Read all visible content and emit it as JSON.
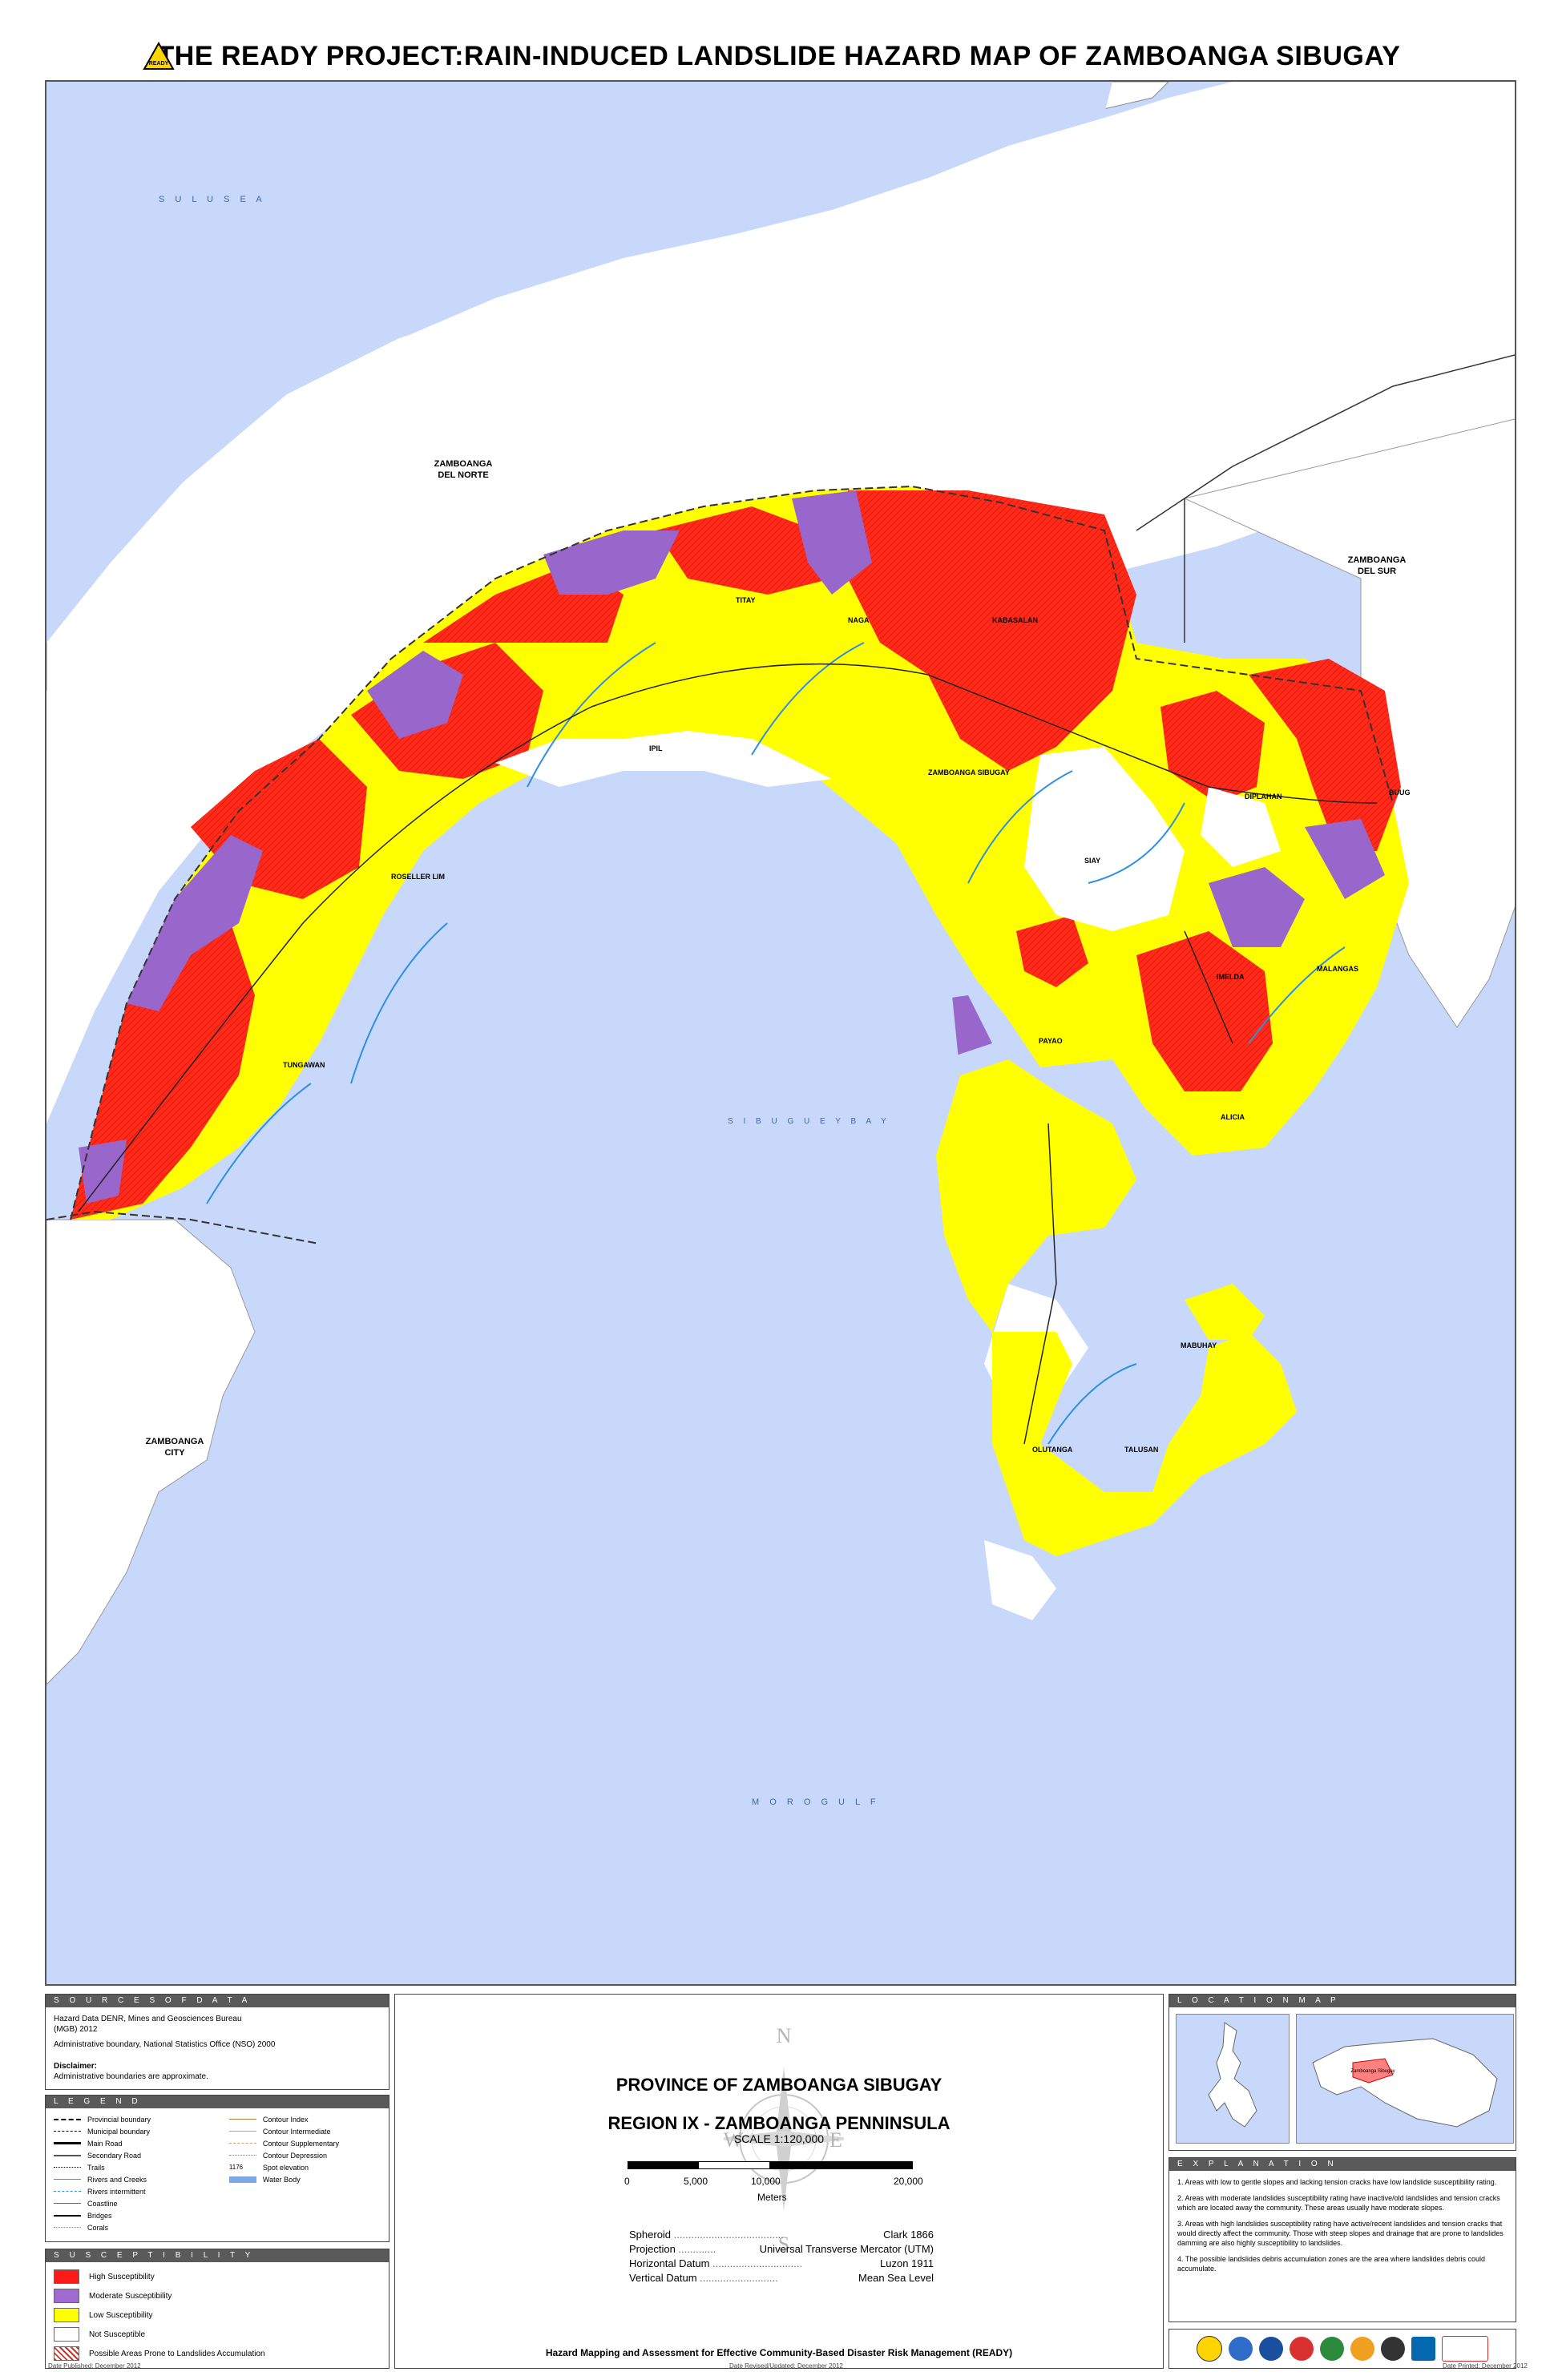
{
  "title": "THE READY PROJECT:RAIN-INDUCED LANDSLIDE HAZARD MAP OF ZAMBOANGA SIBUGAY",
  "map": {
    "water_labels": [
      "S U L U   S E A",
      "S I B U G U E Y   B A Y",
      "M O R O   G U L F"
    ],
    "region_labels": [
      {
        "line1": "ZAMBOANGA",
        "line2": "DEL NORTE"
      },
      {
        "line1": "ZAMBOANGA",
        "line2": "DEL SUR"
      },
      {
        "line1": "ZAMBOANGA",
        "line2": "CITY"
      }
    ],
    "towns": [
      "TITAY",
      "NAGA",
      "KABASALAN",
      "IPIL",
      "ZAMBOANGA SIBUGAY",
      "ROSELLER LIM",
      "SIAY",
      "DIPLAHAN",
      "BUUG",
      "MALANGAS",
      "IMELDA",
      "PAYAO",
      "TUNGAWAN",
      "ALICIA",
      "MABUHAY",
      "OLUTANGA",
      "TALUSAN"
    ],
    "colors": {
      "water": "#c7d8fb",
      "high": "#ff2a1a",
      "moderate": "#9966cc",
      "low": "#ffff00",
      "not": "#ffffff",
      "river": "#2f8fe0"
    }
  },
  "sources": {
    "header": "S O U R C E S   O F   D A T A",
    "line1": "Hazard Data   DENR, Mines and Geosciences Bureau",
    "line2": "(MGB) 2012",
    "line3": "Administrative boundary, National Statistics Office (NSO) 2000",
    "disclaimer_title": "Disclaimer:",
    "disclaimer": "Administrative boundaries are approximate."
  },
  "legend": {
    "header": "L E G E N D",
    "left": [
      "Provincial boundary",
      "Municipal boundary",
      "Main Road",
      "Secondary Road",
      "Trails",
      "Rivers and Creeks",
      "Rivers intermittent",
      "Coastline",
      "Bridges",
      "Corals"
    ],
    "right": [
      "Contour Index",
      "Contour Intermediate",
      "Contour Supplementary",
      "Contour Depression",
      "Spot elevation",
      "Water Body"
    ],
    "spot_value": "1176"
  },
  "susceptibility": {
    "header": "S U S C E P T I B I L I T Y",
    "items": [
      {
        "label": "High Susceptibility",
        "color": "#ff1a1a"
      },
      {
        "label": "Moderate Susceptibility",
        "color": "#a06ad0"
      },
      {
        "label": "Low Susceptibility",
        "color": "#ffff00"
      },
      {
        "label": "Not Susceptible",
        "color": "#ffffff"
      },
      {
        "label": "Possible Areas Prone to Landslides Accumulation",
        "color": "hatch"
      }
    ]
  },
  "center": {
    "province": "PROVINCE OF ZAMBOANGA SIBUGAY",
    "region": "REGION IX - ZAMBOANGA PENNINSULA",
    "scale": "SCALE 1:120,000",
    "scale_ticks": [
      "0",
      "5,000",
      "10,000",
      "20,000"
    ],
    "scale_unit": "Meters",
    "compass": [
      "N",
      "E",
      "S",
      "W"
    ],
    "datum": [
      {
        "label": "Spheroid",
        "value": "Clark 1866"
      },
      {
        "label": "Projection",
        "value": "Universal Transverse Mercator (UTM)"
      },
      {
        "label": "Horizontal Datum",
        "value": "Luzon 1911"
      },
      {
        "label": "Vertical Datum",
        "value": "Mean Sea Level"
      }
    ],
    "project": "Hazard Mapping and Assessment for Effective Community-Based Disaster Risk Management  (READY)"
  },
  "location_map": {
    "header": "L O C A T I O N   M A P",
    "inset_label": "Zamboanga Sibugay"
  },
  "explanation": {
    "header": "E X P L A N A T I O N",
    "items": [
      "1. Areas with low to gentle slopes and lacking tension cracks have low landslide susceptibility rating.",
      "2. Areas with moderate landslides susceptibility rating have inactive/old landslides and tension cracks which are located away the community. These areas usually have moderate slopes.",
      "3. Areas with high landslides susceptibility rating have active/recent landslides and tension cracks that would directly affect the community. Those with steep slopes and drainage that are prone to landslides damming are also highly susceptibility to landslides.",
      "4. The possible landslides debris accumulation zones are the area where landslides debris could accumulate."
    ]
  },
  "footer": {
    "published": "Date Published: December 2012",
    "revised": "Date Revised/Updated: December 2012",
    "printed": "Date Printed: December 2012"
  }
}
